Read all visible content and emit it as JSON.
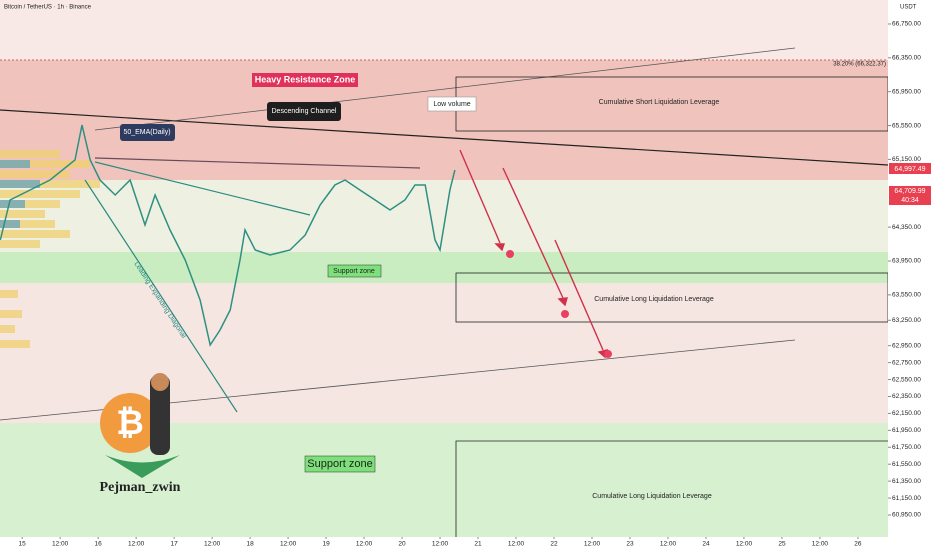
{
  "chart_data": {
    "type": "line",
    "title": "Bitcoin / TetherUS · 1h · Binance",
    "currency": "USDT",
    "annotations": [
      "Heavy Resistance Zone",
      "Descending Channel",
      "Low volume",
      "Cumulative Short Liquidation Leverage",
      "50_EMA(Daily)",
      "Support zone",
      "Cumulative Long Liquidation Leverage",
      "Leading Expanding Diagonal",
      "Support zone",
      "Cumulative Long Liquidation Leverage",
      "Pejman_zwin",
      "38.20% (66,322.37)"
    ],
    "price_labels": [
      "64,997.49",
      "64,709.99",
      "40:34"
    ],
    "series": [
      {
        "name": "BTCUSDT",
        "color": "#2f8f83",
        "x": [
          -6.9,
          -3.8,
          2.5,
          8.8,
          16.7,
          18.9,
          21.5,
          24.6,
          29.4,
          34.1,
          38.8,
          42.0,
          46.7,
          51.5,
          56.2,
          59.4,
          62.5,
          65.7,
          68.8,
          70.4,
          73.6,
          78.3,
          84.6,
          89.4,
          94.1,
          98.8,
          102.0,
          106.7,
          111.5,
          116.2,
          120.9,
          124.1,
          127.3,
          130.4,
          132.0,
          135.1,
          136.7
        ],
        "values": [
          64198,
          64671,
          64789,
          64907,
          65143,
          65557,
          65143,
          64907,
          64730,
          64907,
          64376,
          64730,
          64317,
          63962,
          63490,
          62958,
          63135,
          63371,
          63962,
          64317,
          64080,
          64021,
          64080,
          64257,
          64612,
          64848,
          64907,
          64789,
          64671,
          64553,
          64671,
          64848,
          64848,
          64198,
          64080,
          64789,
          65025
        ]
      }
    ],
    "xlim": [
      -7,
      273.5
    ],
    "ylim": [
      60690,
      67033
    ],
    "xticks": [
      {
        "value": 0,
        "label": "15"
      },
      {
        "value": 12,
        "label": "12:00"
      },
      {
        "value": 24,
        "label": "16"
      },
      {
        "value": 36,
        "label": "12:00"
      },
      {
        "value": 48,
        "label": "17"
      },
      {
        "value": 60,
        "label": "12:00"
      },
      {
        "value": 72,
        "label": "18"
      },
      {
        "value": 84,
        "label": "12:00"
      },
      {
        "value": 96,
        "label": "19"
      },
      {
        "value": 108,
        "label": "12:00"
      },
      {
        "value": 120,
        "label": "20"
      },
      {
        "value": 132,
        "label": "12:00"
      },
      {
        "value": 144,
        "label": "21"
      },
      {
        "value": 156,
        "label": "12:00"
      },
      {
        "value": 168,
        "label": "22"
      },
      {
        "value": 180,
        "label": "12:00"
      },
      {
        "value": 192,
        "label": "23"
      },
      {
        "value": 204,
        "label": "12:00"
      },
      {
        "value": 216,
        "label": "24"
      },
      {
        "value": 228,
        "label": "12:00"
      },
      {
        "value": 240,
        "label": "25"
      },
      {
        "value": 252,
        "label": "12:00"
      },
      {
        "value": 264,
        "label": "26"
      }
    ],
    "yticks": [
      {
        "value": 66750,
        "label": "66,750.00"
      },
      {
        "value": 66350,
        "label": "66,350.00"
      },
      {
        "value": 65950,
        "label": "65,950.00"
      },
      {
        "value": 65550,
        "label": "65,550.00"
      },
      {
        "value": 65150,
        "label": "65,150.00"
      },
      {
        "value": 64350,
        "label": "64,350.00"
      },
      {
        "value": 63950,
        "label": "63,950.00"
      },
      {
        "value": 63550,
        "label": "63,550.00"
      },
      {
        "value": 63250,
        "label": "63,250.00"
      },
      {
        "value": 62950,
        "label": "62,950.00"
      },
      {
        "value": 62750,
        "label": "62,750.00"
      },
      {
        "value": 62550,
        "label": "62,550.00"
      },
      {
        "value": 62350,
        "label": "62,350.00"
      },
      {
        "value": 62150,
        "label": "62,150.00"
      },
      {
        "value": 61950,
        "label": "61,950.00"
      },
      {
        "value": 61750,
        "label": "61,750.00"
      },
      {
        "value": 61550,
        "label": "61,550.00"
      },
      {
        "value": 61350,
        "label": "61,350.00"
      },
      {
        "value": 61150,
        "label": "61,150.00"
      },
      {
        "value": 60950,
        "label": "60,950.00"
      }
    ]
  }
}
